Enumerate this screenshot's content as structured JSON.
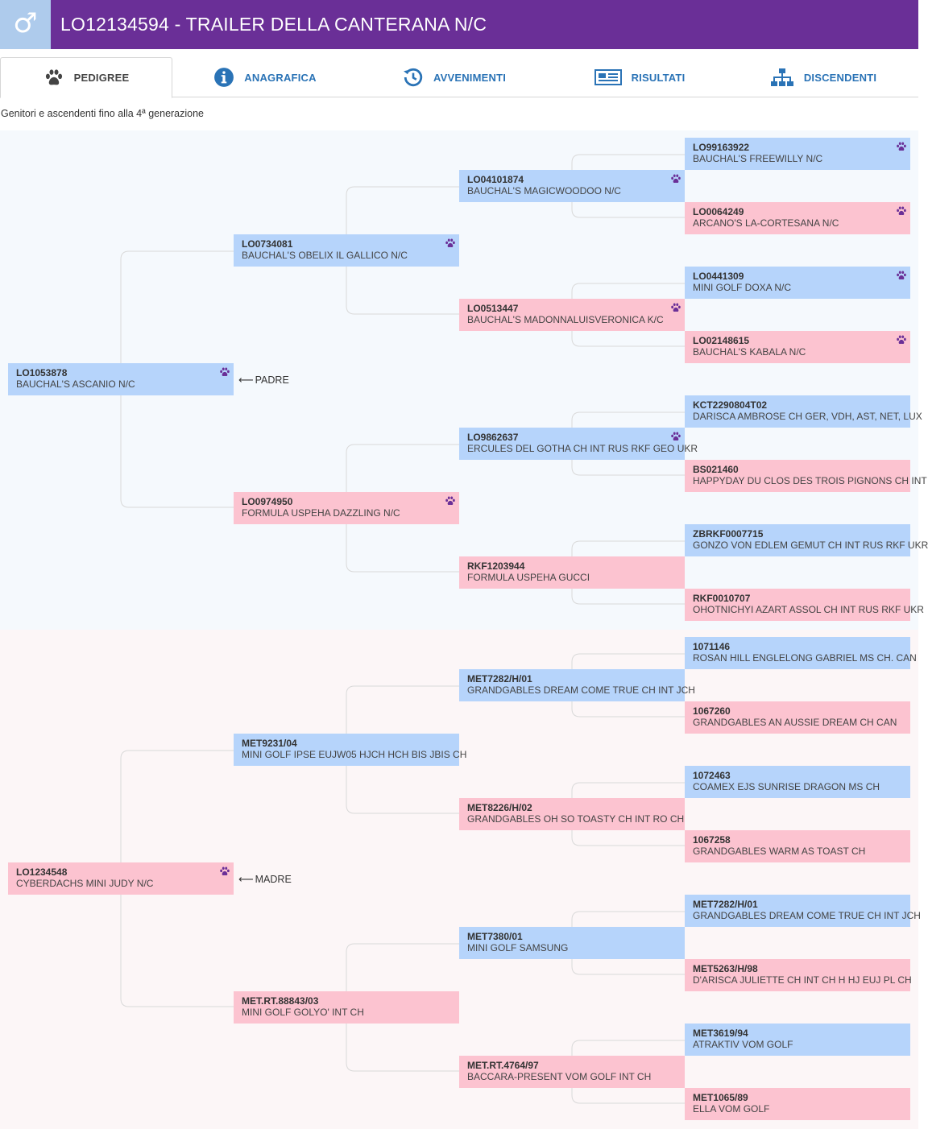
{
  "header": {
    "sex_symbol": "♂",
    "title": "LO12134594 - TRAILER DELLA CANTERANA N/C",
    "color": "#6a2f97"
  },
  "tabs": [
    {
      "label": "PEDIGREE",
      "icon": "paw-icon",
      "active": true
    },
    {
      "label": "ANAGRAFICA",
      "icon": "info-icon",
      "active": false
    },
    {
      "label": "AVVENIMENTI",
      "icon": "history-icon",
      "active": false
    },
    {
      "label": "RISULTATI",
      "icon": "newspaper-icon",
      "active": false
    },
    {
      "label": "DISCENDENTI",
      "icon": "sitemap-icon",
      "active": false
    }
  ],
  "subtitle": "Genitori e ascendenti fino alla 4ª generazione",
  "labels": {
    "padre": "PADRE",
    "madre": "MADRE",
    "arrow": "⟵"
  },
  "colors": {
    "male": "#b6d4fb",
    "female": "#fcc3d0",
    "paw": "#6a2f97"
  },
  "pedigree": {
    "sire": {
      "reg": "LO1053878",
      "name": "BAUCHAL'S ASCANIO N/C",
      "sex": "m",
      "paw": true
    },
    "dam": {
      "reg": "LO1234548",
      "name": "CYBERDACHS MINI JUDY N/C",
      "sex": "f",
      "paw": true
    },
    "ss": {
      "reg": "LO0734081",
      "name": "BAUCHAL'S OBELIX IL GALLICO N/C",
      "sex": "m",
      "paw": true
    },
    "sd": {
      "reg": "LO0974950",
      "name": "FORMULA USPEHA DAZZLING N/C",
      "sex": "f",
      "paw": true
    },
    "ds": {
      "reg": "MET9231/04",
      "name": "MINI GOLF IPSE EUJW05 HJCH HCH BIS JBIS CH",
      "sex": "m",
      "paw": false
    },
    "dd": {
      "reg": "MET.RT.88843/03",
      "name": "MINI GOLF GOLYO' INT CH",
      "sex": "f",
      "paw": false
    },
    "sss": {
      "reg": "LO04101874",
      "name": "BAUCHAL'S MAGICWOODOO N/C",
      "sex": "m",
      "paw": true
    },
    "ssd": {
      "reg": "LO0513447",
      "name": "BAUCHAL'S MADONNALUISVERONICA K/C",
      "sex": "f",
      "paw": true
    },
    "sds": {
      "reg": "LO9862637",
      "name": "ERCULES DEL GOTHA CH INT RUS RKF GEO UKR",
      "sex": "m",
      "paw": true
    },
    "sdd": {
      "reg": "RKF1203944",
      "name": "FORMULA USPEHA GUCCI",
      "sex": "f",
      "paw": false
    },
    "dss": {
      "reg": "MET7282/H/01",
      "name": "GRANDGABLES DREAM COME TRUE CH INT JCH",
      "sex": "m",
      "paw": false
    },
    "dsd": {
      "reg": "MET8226/H/02",
      "name": "GRANDGABLES OH SO TOASTY CH INT RO CH",
      "sex": "f",
      "paw": false
    },
    "dds": {
      "reg": "MET7380/01",
      "name": "MINI GOLF SAMSUNG",
      "sex": "m",
      "paw": false
    },
    "ddd": {
      "reg": "MET.RT.4764/97",
      "name": "BACCARA-PRESENT VOM GOLF INT CH",
      "sex": "f",
      "paw": false
    },
    "ssss": {
      "reg": "LO99163922",
      "name": "BAUCHAL'S FREEWILLY N/C",
      "sex": "m",
      "paw": true
    },
    "sssd": {
      "reg": "LO0064249",
      "name": "ARCANO'S LA-CORTESANA N/C",
      "sex": "f",
      "paw": true
    },
    "ssds": {
      "reg": "LO0441309",
      "name": "MINI GOLF DOXA N/C",
      "sex": "m",
      "paw": true
    },
    "ssdd": {
      "reg": "LO02148615",
      "name": "BAUCHAL'S KABALA N/C",
      "sex": "f",
      "paw": true
    },
    "sdss": {
      "reg": "KCT2290804T02",
      "name": "DARISCA AMBROSE CH GER, VDH, AST, NET, LUX",
      "sex": "m",
      "paw": false
    },
    "sdsd": {
      "reg": "BS021460",
      "name": "HAPPYDAY DU CLOS DES TROIS PIGNONS CH INT",
      "sex": "f",
      "paw": false
    },
    "sdds": {
      "reg": "ZBRKF0007715",
      "name": "GONZO VON EDLEM GEMUT CH INT RUS RKF UKR",
      "sex": "m",
      "paw": false
    },
    "sddd": {
      "reg": "RKF0010707",
      "name": "OHOTNICHYI AZART ASSOL CH INT RUS RKF UKR",
      "sex": "f",
      "paw": false
    },
    "dsss": {
      "reg": "1071146",
      "name": "ROSAN HILL ENGLELONG GABRIEL MS CH. CAN",
      "sex": "m",
      "paw": false
    },
    "dssd": {
      "reg": "1067260",
      "name": "GRANDGABLES AN AUSSIE DREAM CH CAN",
      "sex": "f",
      "paw": false
    },
    "dsds": {
      "reg": "1072463",
      "name": "COAMEX EJS SUNRISE DRAGON MS CH",
      "sex": "m",
      "paw": false
    },
    "dsdd": {
      "reg": "1067258",
      "name": "GRANDGABLES WARM AS TOAST CH",
      "sex": "f",
      "paw": false
    },
    "ddss": {
      "reg": "MET7282/H/01",
      "name": "GRANDGABLES DREAM COME TRUE CH INT JCH",
      "sex": "m",
      "paw": false
    },
    "ddsd": {
      "reg": "MET5263/H/98",
      "name": "D'ARISCA JULIETTE CH INT CH H HJ EUJ PL CH",
      "sex": "f",
      "paw": false
    },
    "ddds": {
      "reg": "MET3619/94",
      "name": "ATRAKTIV VOM GOLF",
      "sex": "m",
      "paw": false
    },
    "dddd": {
      "reg": "MET1065/89",
      "name": "ELLA VOM GOLF",
      "sex": "f",
      "paw": false
    }
  }
}
